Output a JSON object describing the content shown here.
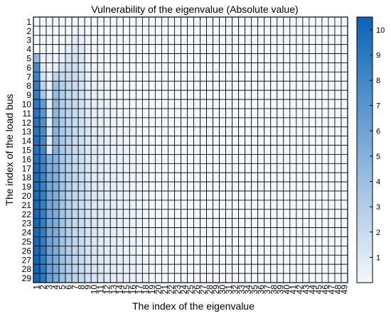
{
  "chart_data": {
    "type": "heatmap",
    "title": "Vulnerability of the eigenvalue (Absolute value)",
    "xlabel": "The index of the eigenvalue",
    "ylabel": "The index of the load bus",
    "x_categories": [
      "1",
      "2",
      "3",
      "4",
      "5",
      "6",
      "7",
      "8",
      "9",
      "10",
      "11",
      "12",
      "13",
      "14",
      "15",
      "16",
      "17",
      "18",
      "19",
      "20",
      "21",
      "22",
      "23",
      "24",
      "25",
      "26",
      "27",
      "28",
      "29",
      "30",
      "31",
      "32",
      "33",
      "34",
      "35",
      "36",
      "37",
      "38",
      "39",
      "40",
      "41",
      "42",
      "43",
      "44",
      "45",
      "46",
      "47",
      "48",
      "49"
    ],
    "y_categories": [
      "1",
      "2",
      "3",
      "4",
      "5",
      "6",
      "7",
      "8",
      "9",
      "10",
      "11",
      "12",
      "13",
      "14",
      "15",
      "16",
      "17",
      "18",
      "19",
      "20",
      "21",
      "22",
      "23",
      "24",
      "25",
      "26",
      "27",
      "28",
      "29"
    ],
    "colorbar": {
      "min": 0,
      "max": 10.5,
      "ticks": [
        "1",
        "2",
        "3",
        "4",
        "5",
        "6",
        "7",
        "8",
        "9",
        "10"
      ],
      "color_low": "#f4f8fc",
      "color_high": "#0a64b8"
    },
    "row_values": {
      "1": [
        0,
        0,
        0,
        0,
        0,
        0,
        0.3,
        0.2,
        0,
        0,
        0,
        0,
        0,
        0,
        0,
        0,
        0,
        0,
        0,
        0,
        0,
        0,
        0,
        0,
        0,
        0,
        0,
        0,
        0,
        0,
        0,
        0,
        0,
        0,
        0,
        0,
        0,
        0,
        0,
        0,
        0,
        0,
        0,
        0,
        0,
        0,
        0,
        0,
        0
      ],
      "2": [
        0,
        0,
        0,
        0,
        0,
        0,
        0.5,
        0.3,
        0,
        0,
        0,
        0,
        0,
        0,
        0,
        0,
        0,
        0,
        0,
        0,
        0,
        0,
        0,
        0,
        0,
        0,
        0,
        0,
        0,
        0,
        0,
        0,
        0,
        0,
        0,
        0,
        0,
        0,
        0,
        0,
        0,
        0,
        0,
        0,
        0,
        0,
        0,
        0,
        0
      ],
      "3": [
        0,
        0,
        0,
        0,
        0,
        0.3,
        1.0,
        0.6,
        0.2,
        0,
        0,
        0,
        0,
        0,
        0,
        0,
        0,
        0,
        0,
        0,
        0,
        0,
        0,
        0,
        0,
        0,
        0,
        0,
        0,
        0,
        0,
        0,
        0,
        0,
        0,
        0,
        0,
        0,
        0,
        0,
        0,
        0,
        0,
        0,
        0,
        0,
        0,
        0,
        0
      ],
      "4": [
        0,
        0,
        0,
        0,
        0.3,
        0.8,
        1.4,
        1.0,
        0.4,
        0.2,
        0,
        0,
        0,
        0,
        0,
        0,
        0,
        0,
        0,
        0,
        0,
        0,
        0,
        0,
        0,
        0,
        0,
        0,
        0,
        0,
        0,
        0,
        0,
        0,
        0,
        0,
        0,
        0,
        0,
        0,
        0,
        0,
        0,
        0,
        0,
        0,
        0,
        0,
        0
      ],
      "5": [
        4.5,
        0.5,
        0.2,
        0.3,
        0.8,
        1.4,
        1.7,
        1.2,
        0.5,
        0.3,
        0.2,
        0,
        0,
        0,
        0,
        0,
        0,
        0,
        0,
        0,
        0,
        0,
        0,
        0,
        0,
        0,
        0,
        0,
        0,
        0,
        0,
        0,
        0,
        0,
        0,
        0,
        0,
        0,
        0,
        0,
        0,
        0,
        0,
        0,
        0,
        0,
        0,
        0,
        0
      ],
      "6": [
        7.8,
        1.0,
        0.3,
        0.8,
        1.6,
        1.8,
        1.8,
        1.3,
        0.6,
        0.4,
        0.3,
        0.1,
        0,
        0,
        0,
        0,
        0,
        0,
        0,
        0,
        0,
        0,
        0,
        0,
        0,
        0,
        0,
        0,
        0,
        0,
        0,
        0,
        0,
        0,
        0,
        0,
        0,
        0,
        0,
        0,
        0,
        0,
        0,
        0,
        0,
        0,
        0,
        0,
        0
      ],
      "7": [
        8.2,
        1.5,
        0.4,
        2.5,
        2.3,
        2.0,
        1.9,
        1.4,
        0.7,
        0.5,
        0.4,
        0.2,
        0,
        0,
        0,
        0,
        0,
        0,
        0,
        0,
        0,
        0,
        0,
        0,
        0,
        0,
        0,
        0,
        0,
        0,
        0,
        0,
        0,
        0,
        0,
        0,
        0,
        0,
        0,
        0,
        0,
        0,
        0,
        0,
        0,
        0,
        0,
        0,
        0
      ],
      "8": [
        8.6,
        2.5,
        0.5,
        4.0,
        2.8,
        2.2,
        2.0,
        1.5,
        0.8,
        0.6,
        0.5,
        0.3,
        0.1,
        0,
        0,
        0,
        0,
        0,
        0,
        0,
        0,
        0,
        0,
        0,
        0,
        0,
        0,
        0,
        0,
        0,
        0,
        0,
        0,
        0,
        0,
        0,
        0,
        0,
        0,
        0,
        0,
        0,
        0,
        0,
        0,
        0,
        0,
        0,
        0
      ],
      "9": [
        8.8,
        3.5,
        0.6,
        4.3,
        3.0,
        2.3,
        2.0,
        1.5,
        0.9,
        0.6,
        0.5,
        0.3,
        0.2,
        0.1,
        0,
        0,
        0,
        0,
        0,
        0,
        0,
        0,
        0,
        0,
        0,
        0,
        0,
        0,
        0,
        0,
        0,
        0,
        0,
        0,
        0,
        0,
        0,
        0,
        0,
        0,
        0,
        0,
        0,
        0,
        0,
        0,
        0,
        0,
        0
      ],
      "10": [
        9.0,
        6.5,
        0.7,
        4.5,
        3.1,
        2.4,
        2.0,
        1.6,
        1.0,
        0.7,
        0.6,
        0.4,
        0.3,
        0.2,
        0.1,
        0,
        0,
        0,
        0,
        0,
        0,
        0,
        0,
        0,
        0,
        0,
        0,
        0,
        0,
        0,
        0,
        0,
        0,
        0,
        0,
        0,
        0,
        0,
        0,
        0,
        0,
        0,
        0,
        0,
        0,
        0,
        0,
        0,
        0
      ],
      "11": [
        9.2,
        7.0,
        0.7,
        4.6,
        3.2,
        2.5,
        2.0,
        1.6,
        1.1,
        0.8,
        0.6,
        0.5,
        0.4,
        0.3,
        0.2,
        0.1,
        0,
        0,
        0,
        0,
        0,
        0,
        0,
        0,
        0,
        0,
        0,
        0,
        0,
        0,
        0,
        0,
        0,
        0,
        0,
        0,
        0,
        0,
        0,
        0,
        0,
        0,
        0,
        0,
        0,
        0,
        0,
        0,
        0
      ],
      "12": [
        9.3,
        7.4,
        0.8,
        4.7,
        3.3,
        2.5,
        2.0,
        1.7,
        1.1,
        0.8,
        0.7,
        0.5,
        0.4,
        0.3,
        0.3,
        0.2,
        0,
        0,
        0,
        0,
        0,
        0,
        0,
        0,
        0,
        0,
        0,
        0,
        0,
        0,
        0,
        0,
        0,
        0,
        0,
        0,
        0,
        0,
        0,
        0,
        0,
        0,
        0,
        0,
        0,
        0,
        0,
        0,
        0
      ],
      "13": [
        9.4,
        7.7,
        0.8,
        4.8,
        3.3,
        2.6,
        2.1,
        1.7,
        1.2,
        0.9,
        0.7,
        0.5,
        0.4,
        0.3,
        0.3,
        0.2,
        0.1,
        0,
        0,
        0,
        0,
        0,
        0,
        0,
        0,
        0,
        0,
        0,
        0,
        0,
        0,
        0,
        0,
        0,
        0,
        0,
        0,
        0,
        0,
        0,
        0,
        0,
        0,
        0,
        0,
        0,
        0,
        0,
        0
      ],
      "14": [
        9.5,
        7.9,
        0.8,
        4.9,
        3.4,
        2.6,
        2.1,
        1.7,
        1.2,
        0.9,
        0.8,
        0.6,
        0.5,
        0.4,
        0.3,
        0.2,
        0.1,
        0,
        0,
        0,
        0,
        0,
        0,
        0,
        0,
        0,
        0,
        0,
        0,
        0,
        0,
        0,
        0,
        0,
        0,
        0,
        0,
        0,
        0,
        0,
        0,
        0,
        0,
        0,
        0,
        0,
        0,
        0,
        0
      ],
      "15": [
        9.6,
        8.0,
        0.9,
        5.0,
        3.4,
        2.7,
        2.1,
        1.8,
        1.2,
        1.0,
        0.8,
        0.6,
        0.5,
        0.4,
        0.4,
        0.3,
        0.2,
        0.1,
        0,
        0,
        0,
        0,
        0,
        0,
        0,
        0,
        0,
        0,
        0,
        0,
        0,
        0,
        0,
        0,
        0,
        0,
        0,
        0,
        0,
        0,
        0,
        0,
        0,
        0,
        0,
        0,
        0,
        0,
        0
      ],
      "16": [
        9.7,
        8.2,
        5.0,
        5.0,
        3.5,
        2.7,
        2.2,
        1.8,
        1.3,
        1.0,
        0.8,
        0.6,
        0.5,
        0.4,
        0.4,
        0.3,
        0.2,
        0.1,
        0,
        0,
        0,
        0,
        0,
        0,
        0,
        0,
        0,
        0,
        0,
        0,
        0,
        0,
        0,
        0,
        0,
        0,
        0,
        0,
        0,
        0,
        0,
        0,
        0,
        0,
        0,
        0,
        0,
        0,
        0
      ],
      "17": [
        9.8,
        8.3,
        5.3,
        5.1,
        3.5,
        2.7,
        2.2,
        1.8,
        1.3,
        1.0,
        0.8,
        0.7,
        0.6,
        0.5,
        0.4,
        0.3,
        0.2,
        0.1,
        0,
        0,
        0,
        0,
        0,
        0,
        0,
        0,
        0,
        0,
        0,
        0,
        0,
        0,
        0,
        0,
        0,
        0,
        0,
        0,
        0,
        0,
        0,
        0,
        0,
        0,
        0,
        0,
        0,
        0,
        0
      ],
      "18": [
        9.8,
        8.4,
        5.5,
        5.1,
        3.6,
        2.8,
        2.2,
        1.8,
        1.3,
        1.0,
        0.9,
        0.7,
        0.6,
        0.5,
        0.4,
        0.3,
        0.2,
        0.1,
        0,
        0,
        0,
        0,
        0,
        0,
        0,
        0,
        0,
        0,
        0,
        0,
        0,
        0,
        0,
        0,
        0,
        0,
        0,
        0,
        0,
        0,
        0,
        0,
        0,
        0,
        0,
        0,
        0,
        0,
        0
      ],
      "19": [
        9.9,
        8.5,
        5.6,
        5.2,
        3.6,
        2.8,
        2.2,
        1.9,
        1.4,
        1.1,
        0.9,
        0.7,
        0.6,
        0.5,
        0.4,
        0.3,
        0.2,
        0.1,
        0,
        0,
        0,
        0,
        0,
        0,
        0,
        0,
        0,
        0,
        0,
        0,
        0,
        0,
        0,
        0,
        0,
        0,
        0,
        0,
        0,
        0,
        0,
        0,
        0,
        0,
        0,
        0,
        0,
        0,
        0
      ],
      "20": [
        9.9,
        8.6,
        5.7,
        5.2,
        3.7,
        2.8,
        2.3,
        1.9,
        1.4,
        1.1,
        0.9,
        0.7,
        0.6,
        0.5,
        0.5,
        0.4,
        0.3,
        0.2,
        0.1,
        0,
        0,
        0,
        0,
        0,
        0,
        0,
        0,
        0,
        0,
        0,
        0,
        0,
        0,
        0,
        0,
        0,
        0,
        0,
        0,
        0,
        0,
        0,
        0,
        0,
        0,
        0,
        0,
        0,
        0
      ],
      "21": [
        10.0,
        8.6,
        5.8,
        5.3,
        3.7,
        2.9,
        2.3,
        1.9,
        1.4,
        1.1,
        0.9,
        0.8,
        0.7,
        0.6,
        0.5,
        0.4,
        0.3,
        0.2,
        0.1,
        0,
        0,
        0,
        0,
        0,
        0,
        0,
        0,
        0,
        0,
        0,
        0,
        0,
        0,
        0,
        0,
        0,
        0,
        0,
        0,
        0,
        0,
        0,
        0,
        0,
        0,
        0,
        0,
        0,
        0
      ],
      "22": [
        10.0,
        8.7,
        5.8,
        5.3,
        3.7,
        2.9,
        2.3,
        1.9,
        1.4,
        1.1,
        1.0,
        0.8,
        0.7,
        0.6,
        0.5,
        0.4,
        0.3,
        0.2,
        0.1,
        0,
        0,
        0,
        0,
        0,
        0,
        0,
        0,
        0,
        0,
        0,
        0,
        0,
        0,
        0,
        0,
        0,
        0,
        0,
        0,
        0,
        0,
        0,
        0,
        0,
        0,
        0,
        0,
        0,
        0
      ],
      "23": [
        10.1,
        8.7,
        5.9,
        5.3,
        3.8,
        2.9,
        2.3,
        1.9,
        1.5,
        1.2,
        1.0,
        0.8,
        0.7,
        0.6,
        0.5,
        0.4,
        0.3,
        0.2,
        0.1,
        0,
        0,
        0,
        0,
        0,
        0,
        0,
        0,
        0,
        0,
        0,
        0,
        0,
        0,
        0,
        0,
        0,
        0,
        0,
        0,
        0,
        0,
        0,
        0,
        0,
        0,
        0,
        0,
        0,
        0
      ],
      "24": [
        10.1,
        8.8,
        5.9,
        5.4,
        3.8,
        2.9,
        2.3,
        2.0,
        1.5,
        1.2,
        1.0,
        0.8,
        0.7,
        0.6,
        0.5,
        0.4,
        0.3,
        0.2,
        0.1,
        0,
        0,
        0,
        0,
        0,
        0,
        0,
        0,
        0,
        0,
        0,
        0,
        0,
        0,
        0,
        0,
        0,
        0,
        0,
        0,
        0,
        0,
        0,
        0,
        0,
        0,
        0,
        0,
        0,
        0
      ],
      "25": [
        10.2,
        8.8,
        6.0,
        5.4,
        3.8,
        3.0,
        2.4,
        2.0,
        1.5,
        1.2,
        1.0,
        0.8,
        0.7,
        0.6,
        0.5,
        0.4,
        0.3,
        0.2,
        0.1,
        0,
        0,
        0,
        0,
        0,
        0,
        0,
        0,
        0,
        0,
        0,
        0,
        0,
        0,
        0,
        0,
        0,
        0,
        0,
        0,
        0,
        0,
        0,
        0,
        0,
        0,
        0,
        0,
        0,
        0
      ],
      "26": [
        10.2,
        8.9,
        6.0,
        5.4,
        3.9,
        3.0,
        2.4,
        2.0,
        1.5,
        1.2,
        1.0,
        0.8,
        0.7,
        0.6,
        0.5,
        0.4,
        0.3,
        0.2,
        0.1,
        0,
        0,
        0,
        0,
        0,
        0,
        0,
        0,
        0,
        0,
        0,
        0,
        0,
        0,
        0,
        0,
        0,
        0,
        0,
        0,
        0,
        0,
        0,
        0,
        0,
        0,
        0,
        0,
        0,
        0
      ],
      "27": [
        10.2,
        8.9,
        6.1,
        5.5,
        3.9,
        3.0,
        2.4,
        2.0,
        1.5,
        1.2,
        1.0,
        0.9,
        0.8,
        0.7,
        0.6,
        0.5,
        0.4,
        0.3,
        0.2,
        0.1,
        0,
        0,
        0,
        0,
        0,
        0,
        0,
        0,
        0,
        0,
        0,
        0,
        0,
        0,
        0,
        0,
        0,
        0,
        0,
        0,
        0,
        0,
        0,
        0,
        0,
        0,
        0,
        0,
        0
      ],
      "28": [
        10.3,
        9.0,
        6.1,
        5.5,
        3.9,
        3.0,
        2.4,
        2.0,
        1.6,
        1.3,
        1.1,
        0.9,
        0.8,
        0.7,
        0.6,
        0.5,
        0.4,
        0.3,
        0.2,
        0.1,
        0,
        0,
        0,
        0,
        0,
        0,
        0,
        0,
        0,
        0,
        0,
        0,
        0,
        0,
        0,
        0,
        0,
        0,
        0,
        0,
        0,
        0,
        0,
        0,
        0,
        0,
        0,
        0,
        0
      ],
      "29": [
        10.3,
        9.0,
        6.2,
        5.5,
        4.0,
        3.1,
        2.5,
        2.1,
        1.6,
        1.3,
        1.1,
        0.9,
        0.8,
        0.7,
        0.6,
        0.5,
        0.4,
        0.3,
        0.2,
        0.1,
        0,
        0,
        0,
        0,
        0,
        0,
        0,
        0,
        0,
        0,
        0,
        0,
        0,
        0,
        0,
        0,
        0,
        0,
        0,
        0,
        0,
        0,
        0,
        0,
        0,
        0,
        0,
        0,
        0
      ]
    }
  }
}
